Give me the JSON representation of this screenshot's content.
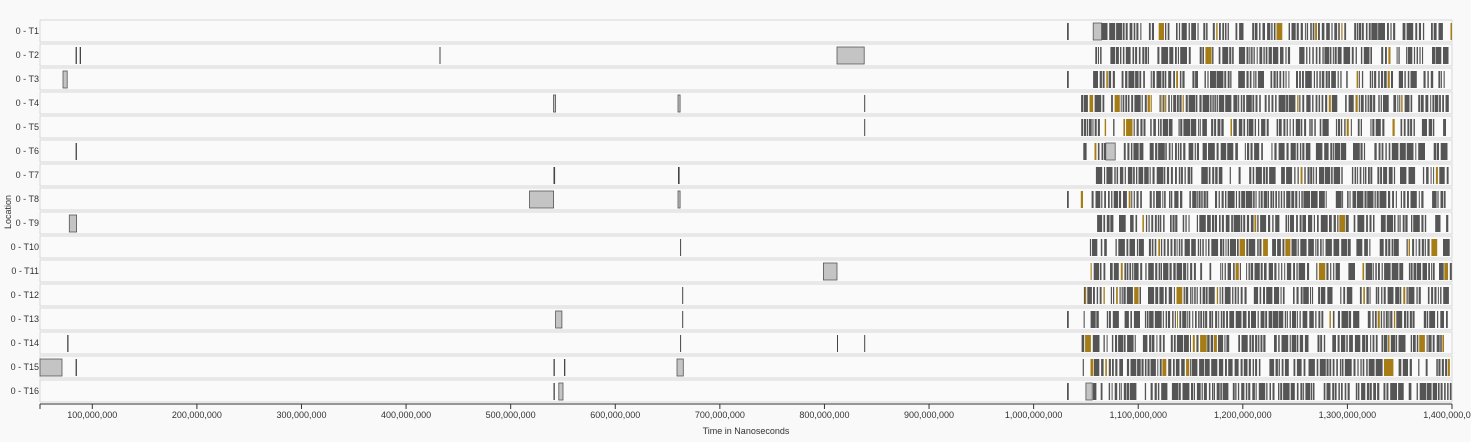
{
  "chart_data": {
    "type": "timeline",
    "xlabel": "Time in Nanoseconds",
    "ylabel": "Location",
    "xlim": [
      50000000,
      1400000000
    ],
    "x_ticks": [
      100000000,
      200000000,
      300000000,
      400000000,
      500000000,
      600000000,
      700000000,
      800000000,
      900000000,
      1000000000,
      1100000000,
      1200000000,
      1300000000,
      1400000000
    ],
    "x_tick_labels": [
      "100,000,000",
      "200,000,000",
      "300,000,000",
      "400,000,000",
      "500,000,000",
      "600,000,000",
      "700,000,000",
      "800,000,000",
      "900,000,000",
      "1,000,000,000",
      "1,100,000,000",
      "1,200,000,000",
      "1,300,000,000",
      "1,400,000,000"
    ],
    "dense_region": {
      "start": 1045000000,
      "end": 1400000000
    },
    "locations": [
      {
        "label": "0 - T1",
        "events": [
          {
            "t": 1032000000,
            "dur": 1500000,
            "kind": "mark"
          },
          {
            "t": 1057000000,
            "dur": 8000000,
            "kind": "region"
          }
        ]
      },
      {
        "label": "0 - T2",
        "events": [
          {
            "t": 84000000,
            "dur": 1200000,
            "kind": "mark"
          },
          {
            "t": 88000000,
            "dur": 1200000,
            "kind": "mark"
          },
          {
            "t": 432000000,
            "dur": 1000000,
            "kind": "mark"
          },
          {
            "t": 812000000,
            "dur": 26000000,
            "kind": "region"
          }
        ]
      },
      {
        "label": "0 - T3",
        "events": [
          {
            "t": 72000000,
            "dur": 4000000,
            "kind": "region"
          },
          {
            "t": 1032000000,
            "dur": 1500000,
            "kind": "mark"
          }
        ]
      },
      {
        "label": "0 - T4",
        "events": [
          {
            "t": 541000000,
            "dur": 2000000,
            "kind": "region"
          },
          {
            "t": 660000000,
            "dur": 2000000,
            "kind": "region"
          },
          {
            "t": 838000000,
            "dur": 1000000,
            "kind": "mark"
          }
        ]
      },
      {
        "label": "0 - T5",
        "events": [
          {
            "t": 838000000,
            "dur": 1000000,
            "kind": "mark"
          }
        ]
      },
      {
        "label": "0 - T6",
        "events": [
          {
            "t": 84000000,
            "dur": 1200000,
            "kind": "mark"
          },
          {
            "t": 1069000000,
            "dur": 9000000,
            "kind": "region"
          }
        ]
      },
      {
        "label": "0 - T7",
        "events": [
          {
            "t": 541000000,
            "dur": 1500000,
            "kind": "mark"
          },
          {
            "t": 660000000,
            "dur": 1500000,
            "kind": "mark"
          }
        ]
      },
      {
        "label": "0 - T8",
        "events": [
          {
            "t": 518000000,
            "dur": 23000000,
            "kind": "region"
          },
          {
            "t": 660000000,
            "dur": 2000000,
            "kind": "region"
          },
          {
            "t": 1032000000,
            "dur": 1500000,
            "kind": "mark"
          }
        ]
      },
      {
        "label": "0 - T9",
        "events": [
          {
            "t": 78000000,
            "dur": 7000000,
            "kind": "region"
          }
        ]
      },
      {
        "label": "0 - T10",
        "events": [
          {
            "t": 662000000,
            "dur": 1000000,
            "kind": "mark"
          }
        ]
      },
      {
        "label": "0 - T11",
        "events": [
          {
            "t": 799000000,
            "dur": 13000000,
            "kind": "region"
          }
        ]
      },
      {
        "label": "0 - T12",
        "events": [
          {
            "t": 664000000,
            "dur": 1000000,
            "kind": "mark"
          },
          {
            "t": 1049000000,
            "dur": 1200000,
            "kind": "gold"
          }
        ]
      },
      {
        "label": "0 - T13",
        "events": [
          {
            "t": 543000000,
            "dur": 6000000,
            "kind": "region"
          },
          {
            "t": 664000000,
            "dur": 1000000,
            "kind": "mark"
          },
          {
            "t": 1032000000,
            "dur": 1500000,
            "kind": "mark"
          }
        ]
      },
      {
        "label": "0 - T14",
        "events": [
          {
            "t": 76000000,
            "dur": 1200000,
            "kind": "mark"
          },
          {
            "t": 662000000,
            "dur": 1000000,
            "kind": "mark"
          },
          {
            "t": 812000000,
            "dur": 1000000,
            "kind": "mark"
          },
          {
            "t": 838000000,
            "dur": 1000000,
            "kind": "mark"
          }
        ]
      },
      {
        "label": "0 - T15",
        "events": [
          {
            "t": 50000000,
            "dur": 21000000,
            "kind": "region"
          },
          {
            "t": 84000000,
            "dur": 1200000,
            "kind": "mark"
          },
          {
            "t": 541000000,
            "dur": 1200000,
            "kind": "mark"
          },
          {
            "t": 551000000,
            "dur": 1200000,
            "kind": "mark"
          },
          {
            "t": 659000000,
            "dur": 6000000,
            "kind": "region"
          },
          {
            "t": 1335000000,
            "dur": 9000000,
            "kind": "gold"
          },
          {
            "t": 1396000000,
            "dur": 2000000,
            "kind": "gold"
          }
        ]
      },
      {
        "label": "0 - T16",
        "events": [
          {
            "t": 541000000,
            "dur": 1200000,
            "kind": "mark"
          },
          {
            "t": 546000000,
            "dur": 4000000,
            "kind": "region"
          },
          {
            "t": 1032000000,
            "dur": 1500000,
            "kind": "mark"
          },
          {
            "t": 1050000000,
            "dur": 6000000,
            "kind": "region"
          }
        ]
      }
    ]
  }
}
